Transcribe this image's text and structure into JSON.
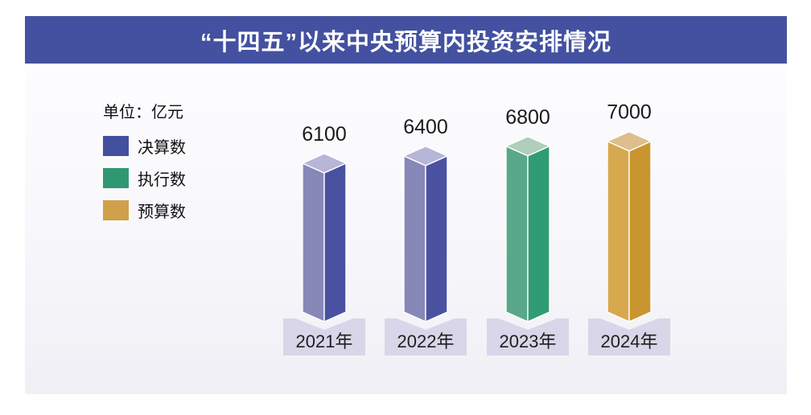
{
  "title": "“十四五”以来中央预算内投资安排情况",
  "unit_label": "单位：亿元",
  "legend": [
    {
      "label": "决算数",
      "color": "#4350A0"
    },
    {
      "label": "执行数",
      "color": "#2F9872"
    },
    {
      "label": "预算数",
      "color": "#D0A04A"
    }
  ],
  "colors": {
    "banner_bg": "#4351A0",
    "banner_text": "#FFFFFF",
    "content_bg_top": "#FDFDFF",
    "content_bg_bottom": "#EFEFF5",
    "plate_bg": "#D8D6E8",
    "value_label_text": "#1A1A1A",
    "year_label_text": "#1F1F1F"
  },
  "chart_data": {
    "type": "bar",
    "variant": "3d-column",
    "title": "“十四五”以来中央预算内投资安排情况",
    "unit": "亿元",
    "categories": [
      "2021年",
      "2022年",
      "2023年",
      "2024年"
    ],
    "values": [
      6100,
      6400,
      6800,
      7000
    ],
    "series_by_bar": [
      "决算数",
      "决算数",
      "执行数",
      "预算数"
    ],
    "legend_entries": [
      "决算数",
      "执行数",
      "预算数"
    ],
    "legend_position": "top-left",
    "grid": false,
    "ylim": [
      0,
      7400
    ],
    "bar_face_colors": {
      "决算数": {
        "left": "#8787B8",
        "right": "#4B51A1",
        "top": "#B7B6D8"
      },
      "执行数": {
        "left": "#58A889",
        "right": "#2F9C74",
        "top": "#AFCEBC"
      },
      "预算数": {
        "left": "#D7A84E",
        "right": "#C9952F",
        "top": "#DDBE8C"
      }
    }
  }
}
